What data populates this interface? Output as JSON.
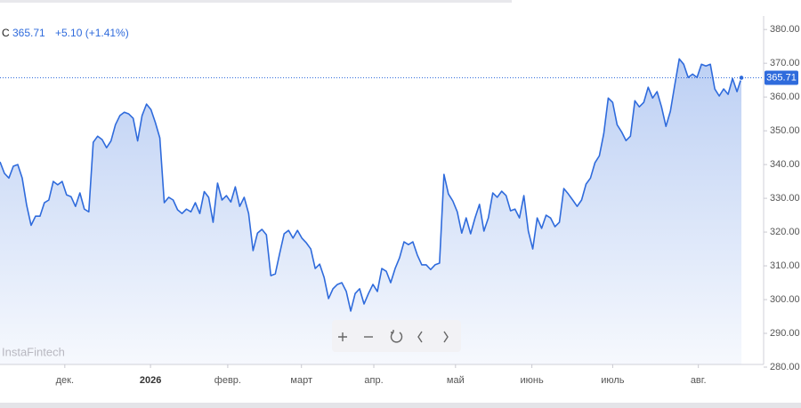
{
  "header": {
    "label": "C",
    "value": "365.71",
    "change": "+5.10 (+1.41%)"
  },
  "watermark": "InstaFintech",
  "chart_data": {
    "type": "area",
    "color": "#2f6bdc",
    "y_axis_side": "right",
    "values": [
      340.8,
      337.4,
      336,
      339.5,
      340,
      336,
      328,
      322,
      324.7,
      324.7,
      328.7,
      329.5,
      335,
      334,
      335,
      331,
      330.5,
      327.6,
      331.6,
      326.8,
      326,
      346.6,
      348.4,
      347.4,
      345,
      347,
      351.8,
      354.5,
      355.5,
      355,
      353.7,
      347,
      354.5,
      357.9,
      356.3,
      352.4,
      347.9,
      328.7,
      330.3,
      329.5,
      326.6,
      325.5,
      326.8,
      326,
      328.7,
      325.5,
      332,
      330.3,
      322.9,
      334.5,
      329.5,
      330.8,
      328.9,
      333.4,
      327.6,
      330.3,
      325.5,
      314.5,
      319.7,
      320.8,
      319.2,
      307.1,
      307.6,
      313.7,
      319.5,
      320.5,
      318.2,
      320.5,
      318.2,
      316.8,
      315,
      309.2,
      310.5,
      306.6,
      300.3,
      303.2,
      304.5,
      305,
      302.4,
      296.6,
      301.8,
      303.2,
      298.7,
      301.8,
      304.5,
      302.4,
      309.2,
      308.4,
      305,
      309.2,
      312.4,
      317.1,
      316.3,
      317.1,
      313.2,
      310.3,
      310.3,
      308.9,
      310.3,
      310.8,
      337.1,
      331.3,
      329.2,
      326,
      319.7,
      324.2,
      319.5,
      324.2,
      328.2,
      320.3,
      324.2,
      331.6,
      330.3,
      332.1,
      330.8,
      326.3,
      326.8,
      324.2,
      330.8,
      320.3,
      315,
      324.2,
      321.1,
      325,
      324.2,
      321.6,
      322.9,
      332.9,
      331.3,
      329.5,
      327.6,
      329.5,
      334.2,
      336,
      340.5,
      342.6,
      349.2,
      359.7,
      358.4,
      351.8,
      349.7,
      347.1,
      348.4,
      358.9,
      357.1,
      358.4,
      362.9,
      359.7,
      361.6,
      357.1,
      351.3,
      355.8,
      363.7,
      371.3,
      369.7,
      365.8,
      366.8,
      365.8,
      369.7,
      369.2,
      369.7,
      362.4,
      360.3,
      362.4,
      360.8,
      365.5,
      361.6,
      365.71
    ],
    "xlim": [
      0,
      172
    ],
    "xticks": [
      {
        "value": 14.6,
        "label": "дек."
      },
      {
        "value": 33.9,
        "label": "2026"
      },
      {
        "value": 51.3,
        "label": "февр."
      },
      {
        "value": 67.9,
        "label": "март"
      },
      {
        "value": 84.2,
        "label": "апр."
      },
      {
        "value": 102.6,
        "label": "май"
      },
      {
        "value": 119.8,
        "label": "июнь"
      },
      {
        "value": 138,
        "label": "июль"
      },
      {
        "value": 157.3,
        "label": "авг."
      }
    ],
    "ylim": [
      280,
      384
    ],
    "yticks": [
      {
        "value": 280,
        "label": "280.00"
      },
      {
        "value": 290,
        "label": "290.00"
      },
      {
        "value": 300,
        "label": "300.00"
      },
      {
        "value": 310,
        "label": "310.00"
      },
      {
        "value": 320,
        "label": "320.00"
      },
      {
        "value": 330,
        "label": "330.00"
      },
      {
        "value": 340,
        "label": "340.00"
      },
      {
        "value": 350,
        "label": "350.00"
      },
      {
        "value": 360,
        "label": "360.00"
      },
      {
        "value": 370,
        "label": "370.00"
      },
      {
        "value": 380,
        "label": "380.00"
      }
    ]
  }
}
